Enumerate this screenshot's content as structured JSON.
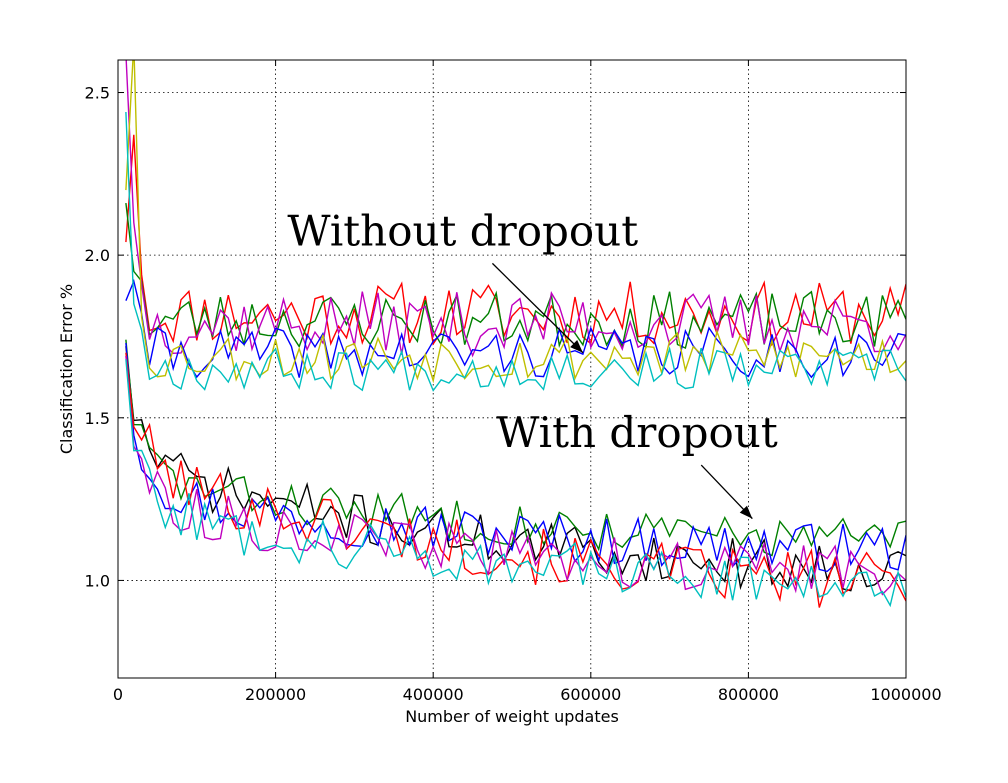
{
  "chart_data": {
    "type": "line",
    "title": "",
    "xlabel": "Number of weight updates",
    "ylabel": "Classification Error %",
    "xlim": [
      0,
      1000000
    ],
    "ylim": [
      0.7,
      2.6
    ],
    "grid": true,
    "x_ticks": [
      0,
      200000,
      400000,
      600000,
      800000,
      1000000
    ],
    "x_tick_labels": [
      "0",
      "200000",
      "400000",
      "600000",
      "800000",
      "1000000"
    ],
    "y_ticks": [
      1.0,
      1.5,
      2.0,
      2.5
    ],
    "y_tick_labels": [
      "1.0",
      "1.5",
      "2.0",
      "2.5"
    ],
    "series_step": 10000,
    "annotations": [
      {
        "text": "Without dropout",
        "xy": [
          590000,
          1.7
        ],
        "xytext": [
          215000,
          2.03
        ]
      },
      {
        "text": "With dropout",
        "xy": [
          805000,
          1.19
        ],
        "xytext": [
          480000,
          1.41
        ]
      }
    ],
    "series": [
      {
        "group": "without",
        "color": "#ff0000",
        "start": 2.04,
        "spike": 2.37,
        "plateau": 1.82,
        "noise": 0.045,
        "seed": 11
      },
      {
        "group": "without",
        "color": "#008000",
        "start": 2.16,
        "spike": 1.95,
        "plateau": 1.8,
        "noise": 0.04,
        "seed": 23
      },
      {
        "group": "without",
        "color": "#bf00bf",
        "start": 2.62,
        "spike": 2.1,
        "plateau": 1.79,
        "noise": 0.045,
        "seed": 37
      },
      {
        "group": "without",
        "color": "#0000ff",
        "start": 1.86,
        "spike": 1.92,
        "plateau": 1.7,
        "noise": 0.035,
        "seed": 41
      },
      {
        "group": "without",
        "color": "#bfbf00",
        "start": 2.2,
        "spike": 2.65,
        "plateau": 1.69,
        "noise": 0.035,
        "seed": 53
      },
      {
        "group": "without",
        "color": "#00bfbf",
        "start": 2.44,
        "spike": 1.85,
        "plateau": 1.65,
        "noise": 0.03,
        "seed": 67
      },
      {
        "group": "with",
        "color": "#000000",
        "start": 1.72,
        "mid": 1.3,
        "end": 1.04,
        "noise": 0.035,
        "seed": 71
      },
      {
        "group": "with",
        "color": "#008000",
        "start": 1.74,
        "mid": 1.28,
        "end": 1.13,
        "noise": 0.03,
        "seed": 83
      },
      {
        "group": "with",
        "color": "#0000ff",
        "start": 1.73,
        "mid": 1.24,
        "end": 1.1,
        "noise": 0.035,
        "seed": 97
      },
      {
        "group": "with",
        "color": "#ff0000",
        "start": 1.7,
        "mid": 1.28,
        "end": 1.0,
        "noise": 0.04,
        "seed": 101
      },
      {
        "group": "with",
        "color": "#bf00bf",
        "start": 1.69,
        "mid": 1.2,
        "end": 1.03,
        "noise": 0.035,
        "seed": 113
      },
      {
        "group": "with",
        "color": "#00bfbf",
        "start": 1.68,
        "mid": 1.18,
        "end": 1.0,
        "noise": 0.035,
        "seed": 127
      }
    ]
  }
}
